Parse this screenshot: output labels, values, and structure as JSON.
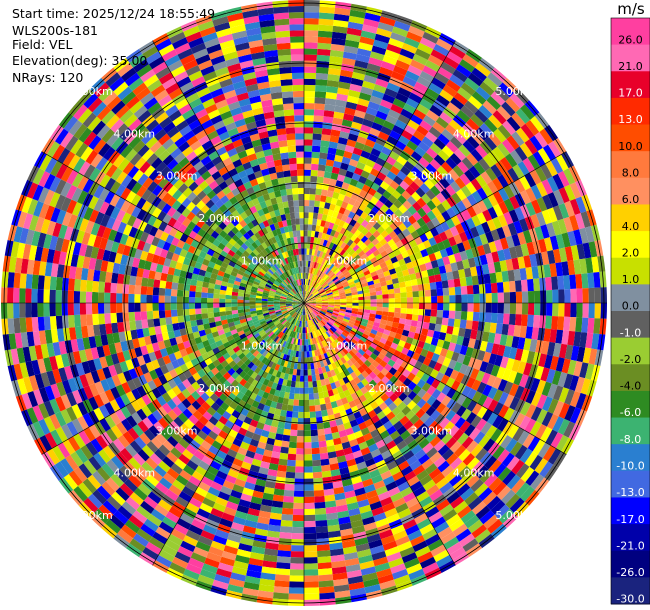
{
  "info": {
    "start_time": "Start time: 2025/12/24 18:55:49",
    "instrument": "WLS200s-181",
    "field": "Field: VEL",
    "elevation": "Elevation(deg): 35.00",
    "nrays": "NRays: 120"
  },
  "chart_data": {
    "type": "heatmap",
    "projection": "polar PPI",
    "field": "VEL",
    "units": "m/s",
    "nrays": 120,
    "elevation_deg": 35.0,
    "range_rings_km": [
      1.0,
      2.0,
      3.0,
      4.0,
      5.0
    ],
    "range_ring_labels": [
      "1.00km",
      "2.00km",
      "3.00km",
      "4.00km",
      "5.00km"
    ],
    "max_range_km": 5.3,
    "colorbar": {
      "title": "m/s",
      "ticks": [
        "26.0",
        "21.0",
        "17.0",
        "13.0",
        "10.0",
        "8.0",
        "6.0",
        "4.0",
        "2.0",
        "1.0",
        "0.0",
        "-1.0",
        "-2.0",
        "-4.0",
        "-6.0",
        "-8.0",
        "-10.0",
        "-13.0",
        "-17.0",
        "-21.0",
        "-26.0",
        "-30.0"
      ],
      "colors": [
        "#ff3fa0",
        "#ff69b4",
        "#e8002a",
        "#ff2a00",
        "#ff4d00",
        "#ff7a3d",
        "#ff9060",
        "#ffd000",
        "#ffff00",
        "#c8e000",
        "#8090a0",
        "#606060",
        "#9acd32",
        "#6b8e23",
        "#2e8b22",
        "#3cb371",
        "#2a7fd0",
        "#4169e1",
        "#0000ff",
        "#0000aa",
        "#000080",
        "#1a237e"
      ]
    },
    "pattern": "near-range (< ~2 km): positive velocities (yellow/orange/pink) to the east, negative velocities (green/blue) to the west and south; far range dominated by noisy mixed values"
  }
}
